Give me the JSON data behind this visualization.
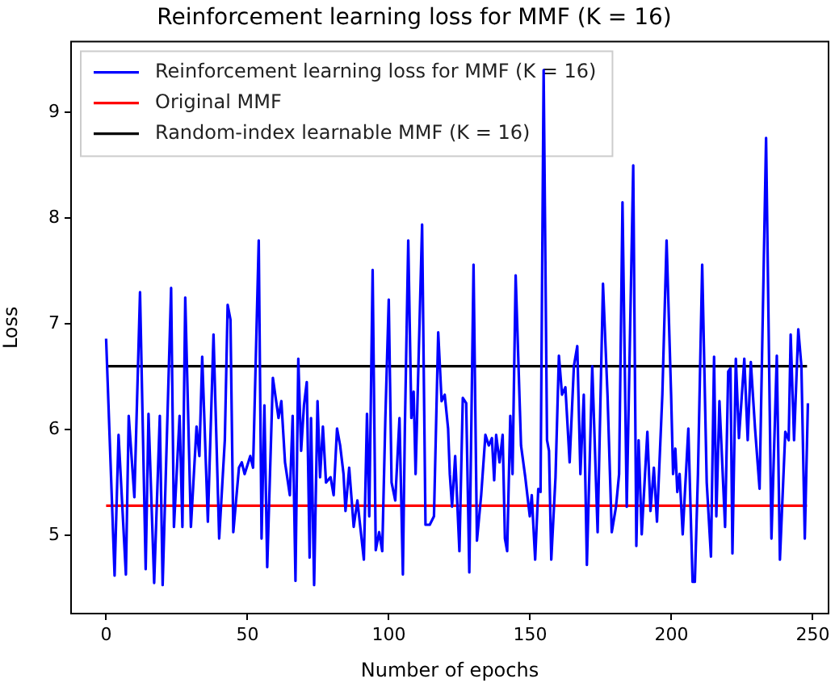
{
  "chart_data": {
    "type": "line",
    "title": "Reinforcement learning loss for MMF (K = 16)",
    "xlabel": "Number of epochs",
    "ylabel": "Loss",
    "xlim": [
      -12.4,
      255.6
    ],
    "ylim": [
      4.26,
      9.67
    ],
    "xticks": [
      0,
      50,
      100,
      150,
      200,
      250
    ],
    "yticks": [
      5,
      6,
      7,
      8,
      9
    ],
    "grid": false,
    "legend": "top left",
    "marker": "none",
    "line_style": "solid",
    "series": [
      {
        "name": "Reinforcement learning loss for MMF (K = 16)",
        "color": "#0000ff",
        "x": [
          0,
          3,
          4.4,
          7,
          8,
          10,
          12,
          14,
          15,
          17,
          19,
          20,
          23,
          24,
          26,
          27,
          28,
          30,
          32,
          33,
          34,
          36,
          38,
          40,
          42,
          43,
          44,
          45,
          47,
          48,
          49,
          51,
          52,
          54,
          55,
          56,
          57,
          59,
          61,
          62,
          63.3,
          65,
          66,
          67,
          68,
          69,
          70,
          71,
          72,
          72.5,
          73.6,
          74.8,
          75.7,
          76.7,
          77.8,
          79.4,
          80.5,
          81.7,
          82.8,
          84,
          84.7,
          86,
          87.6,
          88.9,
          91.2,
          92.3,
          93.1,
          94.3,
          95.4,
          96.6,
          97.7,
          98.8,
          100,
          101,
          102.3,
          103.8,
          105,
          105.7,
          106.9,
          108,
          108.8,
          109.5,
          111.8,
          113,
          114.5,
          116,
          117.5,
          118.7,
          119.8,
          121,
          121.6,
          122.4,
          123.5,
          125,
          126.2,
          127.4,
          128.5,
          130,
          131.2,
          132.7,
          134.2,
          135.4,
          136.5,
          137.3,
          138,
          139.2,
          140.3,
          141.1,
          141.9,
          143,
          143.8,
          144.9,
          146.8,
          148.3,
          149.9,
          150.6,
          151.8,
          152.9,
          153.7,
          154.8,
          156,
          156.7,
          157.5,
          159,
          160.2,
          161.3,
          162.5,
          164,
          165.5,
          166.7,
          167.8,
          169,
          170.1,
          172,
          173.9,
          175.8,
          177.4,
          178.9,
          180.4,
          181.5,
          182.7,
          184.2,
          186.5,
          187.6,
          188.4,
          189.5,
          191.5,
          192.6,
          193.8,
          194.9,
          196.8,
          198.3,
          199.9,
          200.6,
          201.4,
          202.1,
          202.9,
          204,
          206,
          207.5,
          208.3,
          209.4,
          210.9,
          212.5,
          214,
          215.1,
          215.9,
          217,
          219,
          220.1,
          220.9,
          221.6,
          222.8,
          223.9,
          225.8,
          227,
          228.1,
          229.6,
          231.2,
          233.5,
          235.4,
          237.3,
          238.4,
          240.3,
          241.5,
          242.2,
          243.4,
          244.9,
          246,
          247.2,
          248.3
        ],
        "values": [
          6.86,
          4.62,
          5.95,
          4.63,
          6.13,
          5.36,
          7.3,
          4.68,
          6.15,
          4.55,
          6.13,
          4.53,
          7.34,
          5.08,
          6.13,
          5.08,
          7.25,
          5.08,
          6.03,
          5.75,
          6.69,
          5.13,
          6.9,
          4.97,
          5.9,
          7.18,
          7.04,
          5.03,
          5.64,
          5.69,
          5.58,
          5.75,
          5.64,
          7.79,
          4.97,
          6.23,
          4.7,
          6.49,
          6.11,
          6.27,
          5.69,
          5.38,
          6.13,
          4.57,
          6.67,
          5.8,
          6.23,
          6.45,
          4.79,
          6.11,
          4.53,
          6.27,
          5.55,
          6.03,
          5.5,
          5.55,
          5.38,
          6.01,
          5.85,
          5.58,
          5.23,
          5.64,
          5.08,
          5.33,
          4.77,
          6.15,
          5.18,
          7.51,
          4.86,
          5.03,
          4.85,
          6.11,
          7.23,
          5.5,
          5.33,
          6.11,
          4.63,
          6.01,
          7.79,
          6.11,
          6.36,
          5.58,
          7.94,
          5.1,
          5.1,
          5.18,
          6.92,
          6.27,
          6.33,
          6.01,
          5.58,
          5.27,
          5.75,
          4.85,
          6.3,
          6.25,
          4.65,
          7.56,
          4.95,
          5.38,
          5.95,
          5.85,
          5.92,
          5.52,
          5.95,
          5.69,
          5.95,
          4.97,
          4.85,
          6.13,
          5.58,
          7.46,
          5.85,
          5.55,
          5.18,
          5.38,
          4.77,
          5.44,
          5.41,
          9.4,
          5.9,
          5.8,
          4.77,
          5.55,
          6.7,
          6.33,
          6.4,
          5.69,
          6.6,
          6.79,
          5.58,
          6.33,
          4.72,
          6.6,
          5.03,
          7.38,
          6.33,
          5.03,
          5.27,
          5.58,
          8.15,
          5.27,
          8.5,
          4.9,
          5.9,
          5.01,
          5.98,
          5.23,
          5.64,
          5.13,
          6.33,
          7.79,
          6.33,
          5.58,
          5.82,
          5.41,
          5.58,
          5.01,
          6.01,
          4.56,
          4.56,
          5.58,
          7.56,
          5.5,
          4.8,
          6.69,
          5.18,
          6.27,
          5.08,
          6.55,
          6.58,
          4.83,
          6.67,
          5.92,
          6.67,
          5.9,
          6.64,
          6.01,
          5.44,
          8.76,
          4.97,
          6.7,
          4.77,
          5.98,
          5.9,
          6.9,
          5.9,
          6.95,
          6.6,
          4.97,
          6.25
        ]
      },
      {
        "name": "Original MMF",
        "color": "#ff0000",
        "x": [
          0,
          248
        ],
        "values": [
          5.28,
          5.28
        ]
      },
      {
        "name": "Random-index learnable MMF (K = 16)",
        "color": "#000000",
        "x": [
          0,
          248
        ],
        "values": [
          6.6,
          6.6
        ]
      }
    ]
  }
}
